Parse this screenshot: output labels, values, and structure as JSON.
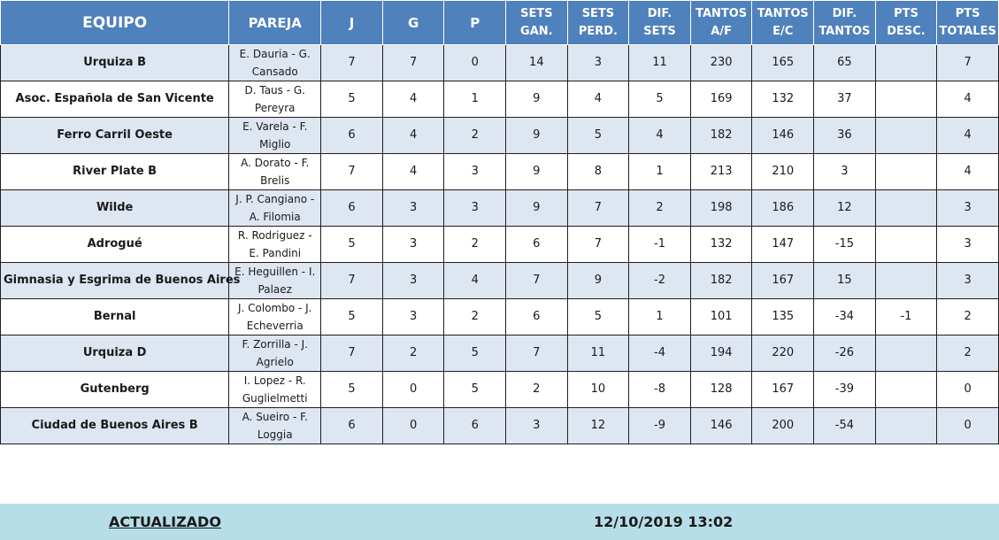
{
  "headers": {
    "team": "EQUIPO",
    "pair": "PAREJA",
    "j": "J",
    "g": "G",
    "p": "P",
    "sets_won": [
      "SETS",
      "GAN."
    ],
    "sets_lost": [
      "SETS",
      "PERD."
    ],
    "sets_diff": "DIF. SETS",
    "points_for": [
      "TANTOS",
      "A/F"
    ],
    "points_against": [
      "TANTOS",
      "E/C"
    ],
    "points_diff": [
      "DIF.",
      "TANTOS"
    ],
    "pts_deducted": [
      "PTS",
      "DESC."
    ],
    "pts_total": [
      "PTS",
      "TOTALES"
    ]
  },
  "rows": [
    {
      "team": "Urquiza B",
      "pair": [
        "E. Dauria - G.",
        "Cansado"
      ],
      "j": "7",
      "g": "7",
      "p": "0",
      "sg": "14",
      "sp": "3",
      "ds": "11",
      "ta": "230",
      "te": "165",
      "dt": "65",
      "desc": "",
      "tot": "7"
    },
    {
      "team": "Asoc. Española de San Vicente",
      "pair": [
        "D. Taus - G.",
        "Pereyra"
      ],
      "j": "5",
      "g": "4",
      "p": "1",
      "sg": "9",
      "sp": "4",
      "ds": "5",
      "ta": "169",
      "te": "132",
      "dt": "37",
      "desc": "",
      "tot": "4"
    },
    {
      "team": "Ferro Carril Oeste",
      "pair": [
        "E. Varela - F.",
        "Miglio"
      ],
      "j": "6",
      "g": "4",
      "p": "2",
      "sg": "9",
      "sp": "5",
      "ds": "4",
      "ta": "182",
      "te": "146",
      "dt": "36",
      "desc": "",
      "tot": "4"
    },
    {
      "team": "River Plate B",
      "pair": [
        "A. Dorato - F.",
        "Brelis"
      ],
      "j": "7",
      "g": "4",
      "p": "3",
      "sg": "9",
      "sp": "8",
      "ds": "1",
      "ta": "213",
      "te": "210",
      "dt": "3",
      "desc": "",
      "tot": "4"
    },
    {
      "team": "Wilde",
      "pair": [
        "J. P. Cangiano -",
        "A. Filomia"
      ],
      "j": "6",
      "g": "3",
      "p": "3",
      "sg": "9",
      "sp": "7",
      "ds": "2",
      "ta": "198",
      "te": "186",
      "dt": "12",
      "desc": "",
      "tot": "3"
    },
    {
      "team": "Adrogué",
      "pair": [
        "R. Rodriguez -",
        "E. Pandini"
      ],
      "j": "5",
      "g": "3",
      "p": "2",
      "sg": "6",
      "sp": "7",
      "ds": "-1",
      "ta": "132",
      "te": "147",
      "dt": "-15",
      "desc": "",
      "tot": "3"
    },
    {
      "team": "Gimnasia y Esgrima de Buenos Aires",
      "pair": [
        "E. Heguillen - I.",
        "Palaez"
      ],
      "j": "7",
      "g": "3",
      "p": "4",
      "sg": "7",
      "sp": "9",
      "ds": "-2",
      "ta": "182",
      "te": "167",
      "dt": "15",
      "desc": "",
      "tot": "3"
    },
    {
      "team": "Bernal",
      "pair": [
        "J. Colombo - J.",
        "Echeverria"
      ],
      "j": "5",
      "g": "3",
      "p": "2",
      "sg": "6",
      "sp": "5",
      "ds": "1",
      "ta": "101",
      "te": "135",
      "dt": "-34",
      "desc": "-1",
      "tot": "2"
    },
    {
      "team": "Urquiza D",
      "pair": [
        "F. Zorrilla - J.",
        "Agrielo"
      ],
      "j": "7",
      "g": "2",
      "p": "5",
      "sg": "7",
      "sp": "11",
      "ds": "-4",
      "ta": "194",
      "te": "220",
      "dt": "-26",
      "desc": "",
      "tot": "2"
    },
    {
      "team": "Gutenberg",
      "pair": [
        "I. Lopez - R.",
        "Guglielmetti"
      ],
      "j": "5",
      "g": "0",
      "p": "5",
      "sg": "2",
      "sp": "10",
      "ds": "-8",
      "ta": "128",
      "te": "167",
      "dt": "-39",
      "desc": "",
      "tot": "0"
    },
    {
      "team": "Ciudad de Buenos Aires B",
      "pair": [
        "A. Sueiro - F.",
        "Loggia"
      ],
      "j": "6",
      "g": "0",
      "p": "6",
      "sg": "3",
      "sp": "12",
      "ds": "-9",
      "ta": "146",
      "te": "200",
      "dt": "-54",
      "desc": "",
      "tot": "0"
    }
  ],
  "footer": {
    "label": "ACTUALIZADO",
    "timestamp": "12/10/2019 13:02"
  },
  "colors": {
    "header_bg": "#4f81bd",
    "row_alt_bg": "#dde6f1",
    "footer_bg": "#b7dee8"
  }
}
